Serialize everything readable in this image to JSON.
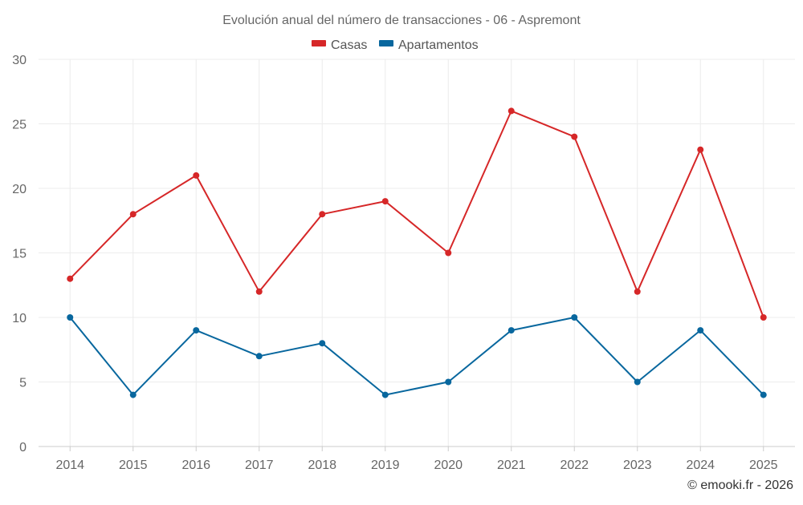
{
  "chart_data": {
    "type": "line",
    "title": "Evolución anual del número de transacciones - 06 - Aspremont",
    "categories": [
      "2014",
      "2015",
      "2016",
      "2017",
      "2018",
      "2019",
      "2020",
      "2021",
      "2022",
      "2023",
      "2024",
      "2025"
    ],
    "series": [
      {
        "name": "Casas",
        "color": "#d62728",
        "values": [
          13,
          18,
          21,
          12,
          18,
          19,
          15,
          26,
          24,
          12,
          23,
          10
        ]
      },
      {
        "name": "Apartamentos",
        "color": "#08679e",
        "values": [
          10,
          4,
          9,
          7,
          8,
          4,
          5,
          9,
          10,
          5,
          9,
          4
        ]
      }
    ],
    "ylim": [
      0,
      30
    ],
    "yticks": [
      0,
      5,
      10,
      15,
      20,
      25,
      30
    ],
    "grid": true,
    "legend_position": "top-center",
    "xlabel": "",
    "ylabel": ""
  },
  "credit": "© emooki.fr - 2026"
}
